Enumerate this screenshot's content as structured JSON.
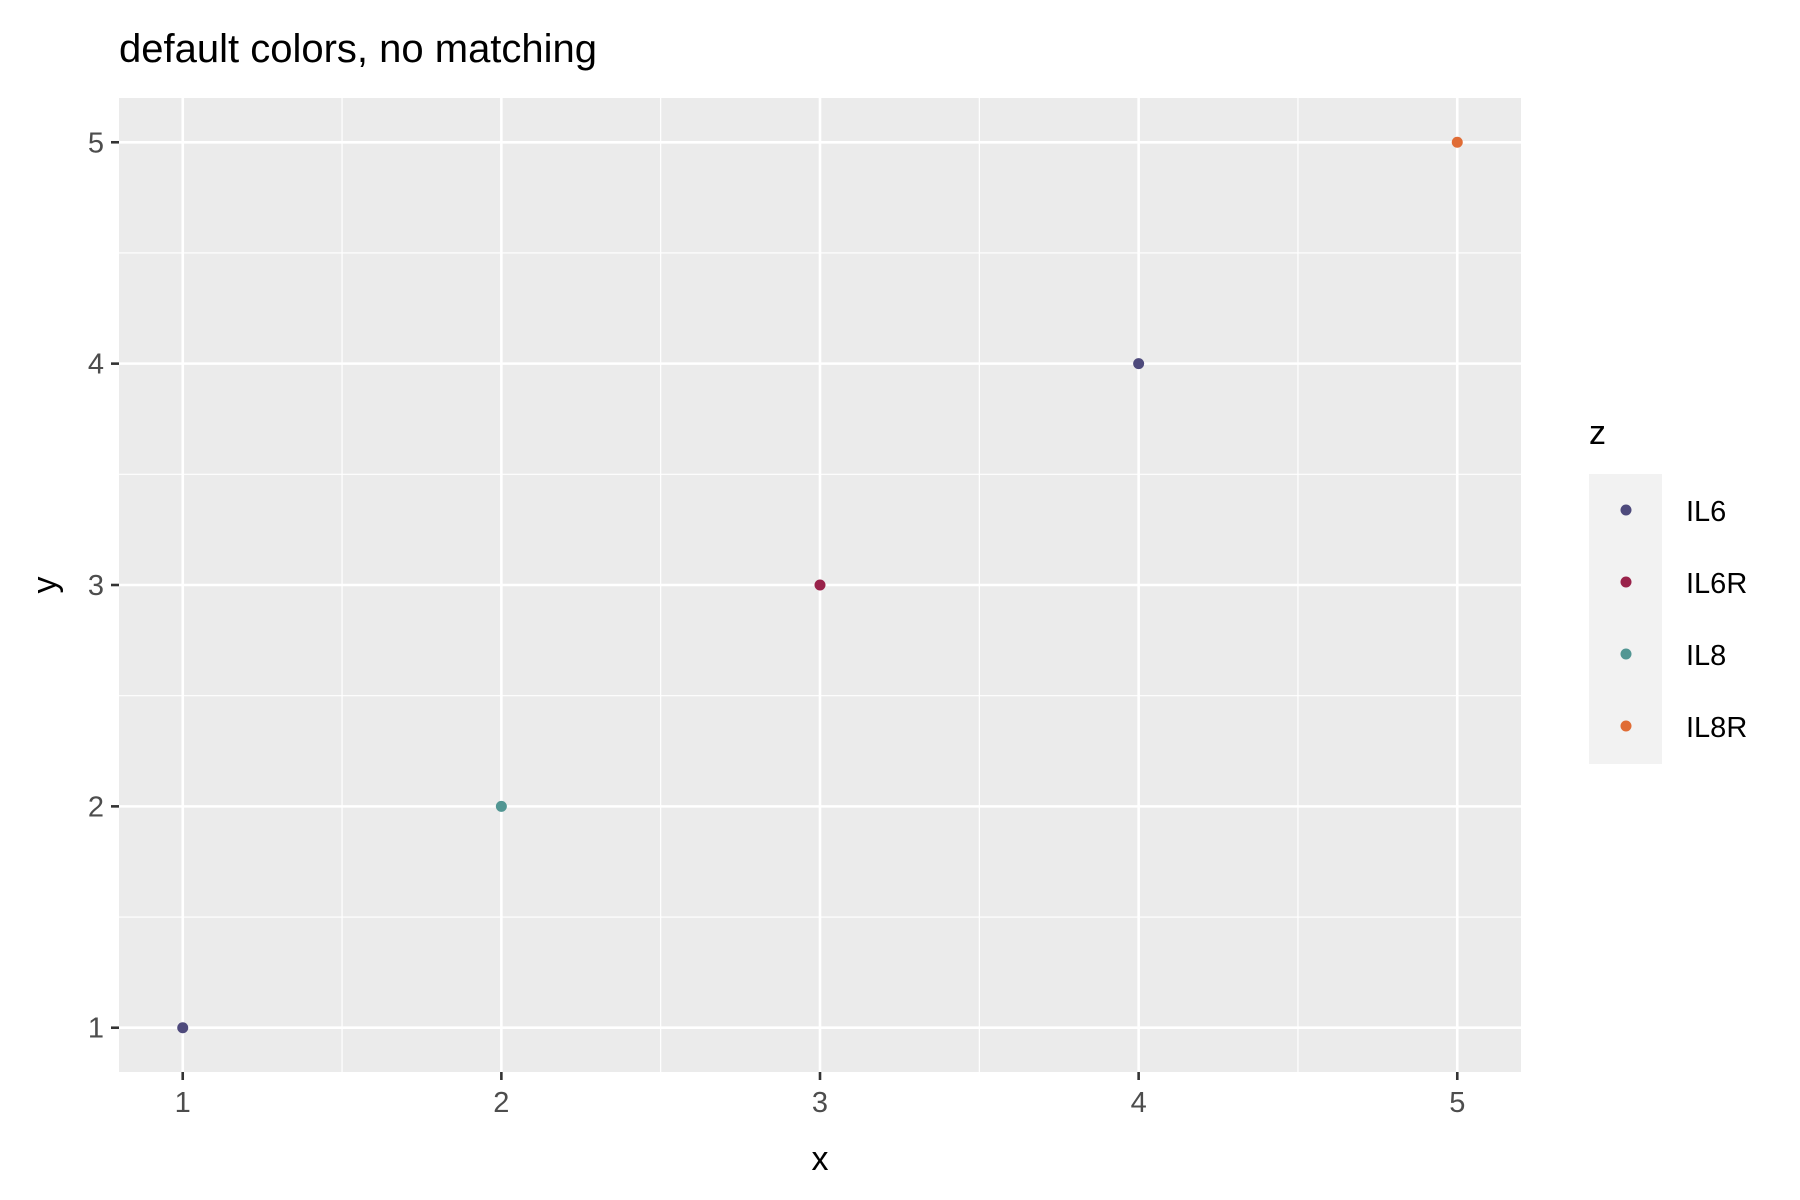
{
  "chart_data": {
    "type": "scatter",
    "title": "default colors, no matching",
    "xlabel": "x",
    "ylabel": "y",
    "xlim": [
      0.8,
      5.2
    ],
    "ylim": [
      0.8,
      5.2
    ],
    "x_ticks": [
      1,
      2,
      3,
      4,
      5
    ],
    "y_ticks": [
      1,
      2,
      3,
      4,
      5
    ],
    "grid": true,
    "legend_position": "right",
    "legend": {
      "title": "z",
      "entries": [
        {
          "label": "IL6",
          "color": "#4E4A7C"
        },
        {
          "label": "IL6R",
          "color": "#99224A"
        },
        {
          "label": "IL8",
          "color": "#529693"
        },
        {
          "label": "IL8R",
          "color": "#E06C35"
        }
      ]
    },
    "points": [
      {
        "x": 1,
        "y": 1,
        "z": "IL6"
      },
      {
        "x": 2,
        "y": 2,
        "z": "IL8"
      },
      {
        "x": 3,
        "y": 3,
        "z": "IL6R"
      },
      {
        "x": 4,
        "y": 4,
        "z": "IL6"
      },
      {
        "x": 5,
        "y": 5,
        "z": "IL8R"
      }
    ]
  }
}
